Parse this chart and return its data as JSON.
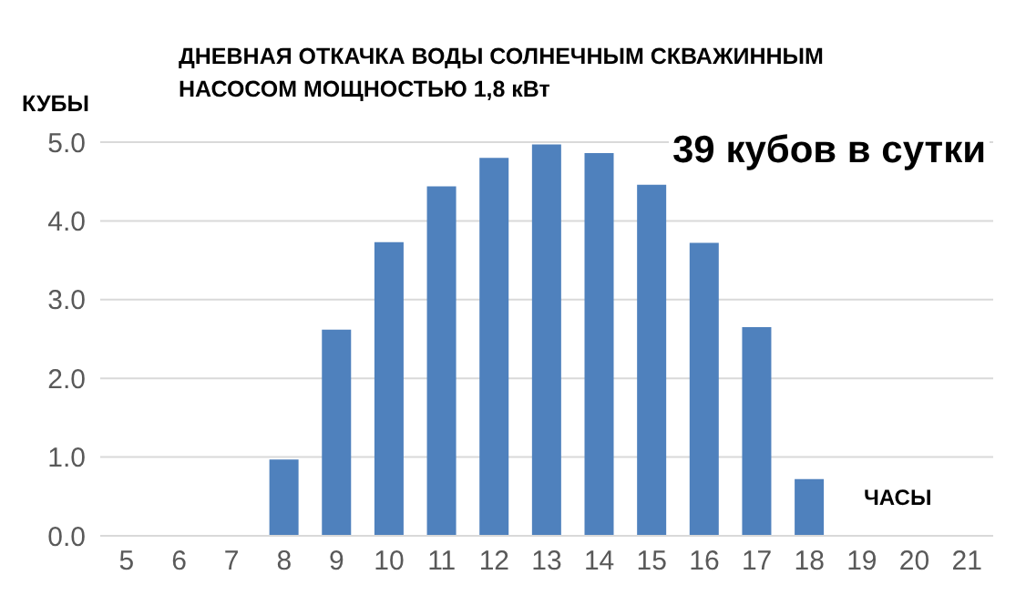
{
  "chart_data": {
    "type": "bar",
    "title": "ДНЕВНАЯ ОТКАЧКА ВОДЫ СОЛНЕЧНЫМ СКВАЖИННЫМ НАСОСОМ МОЩНОСТЬЮ 1,8 кВт",
    "ylabel": "КУБЫ",
    "xlabel": "ЧАСЫ",
    "annotations": [
      "39 кубов в сутки"
    ],
    "categories": [
      "5",
      "6",
      "7",
      "8",
      "9",
      "10",
      "11",
      "12",
      "13",
      "14",
      "15",
      "16",
      "17",
      "18",
      "19",
      "20",
      "21"
    ],
    "values": [
      0,
      0,
      0,
      0.97,
      2.62,
      3.73,
      4.44,
      4.8,
      4.97,
      4.86,
      4.46,
      3.72,
      2.65,
      0.72,
      0,
      0,
      0
    ],
    "color": "#4f81bd",
    "ylim": [
      0,
      5
    ],
    "yticks": [
      {
        "value": 0,
        "label": "0.0"
      },
      {
        "value": 1,
        "label": "1.0"
      },
      {
        "value": 2,
        "label": "2.0"
      },
      {
        "value": 3,
        "label": "3.0"
      },
      {
        "value": 4,
        "label": "4.0"
      },
      {
        "value": 5,
        "label": "5.0"
      }
    ],
    "grid": "y",
    "legend": false
  }
}
